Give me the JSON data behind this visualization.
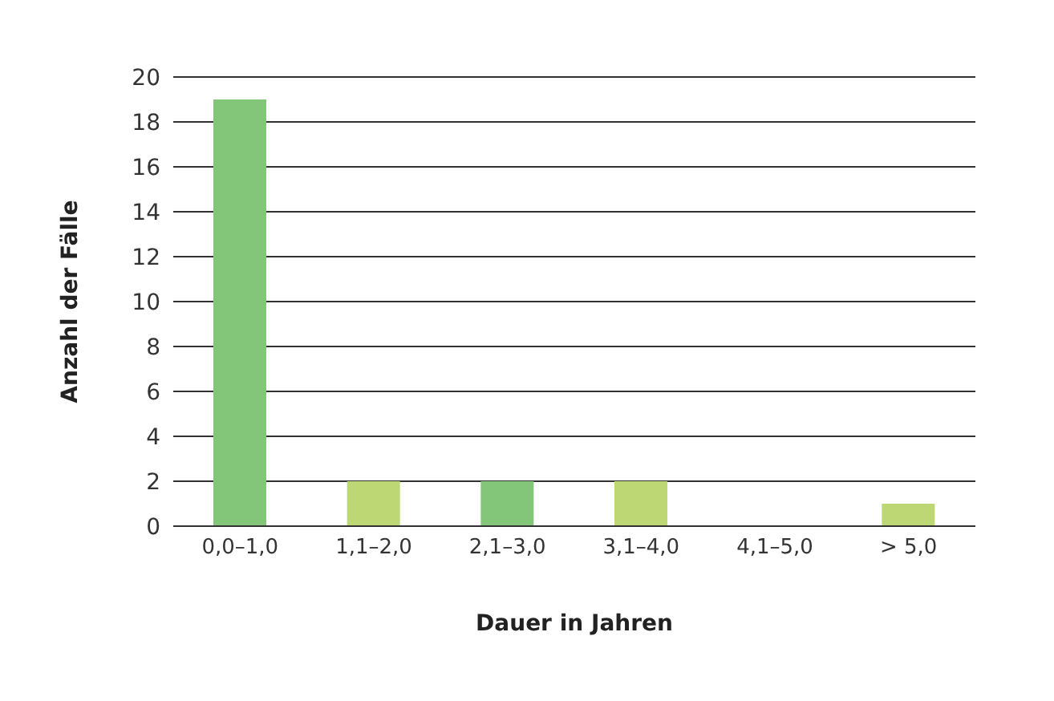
{
  "chart_data": {
    "type": "bar",
    "xlabel": "Dauer in Jahren",
    "ylabel": "Anzahl der Fälle",
    "categories": [
      "0,0–1,0",
      "1,1–2,0",
      "2,1–3,0",
      "3,1–4,0",
      "4,1–5,0",
      "> 5,0"
    ],
    "values": [
      19,
      2,
      2,
      2,
      0,
      1
    ],
    "colors": [
      "#83c67a",
      "#bcd774",
      "#83c67a",
      "#bcd774",
      "#83c67a",
      "#bcd774"
    ],
    "ylim": [
      0,
      20
    ],
    "yticks": [
      0,
      2,
      4,
      6,
      8,
      10,
      12,
      14,
      16,
      18,
      20
    ],
    "grid": "y",
    "legend": false
  }
}
